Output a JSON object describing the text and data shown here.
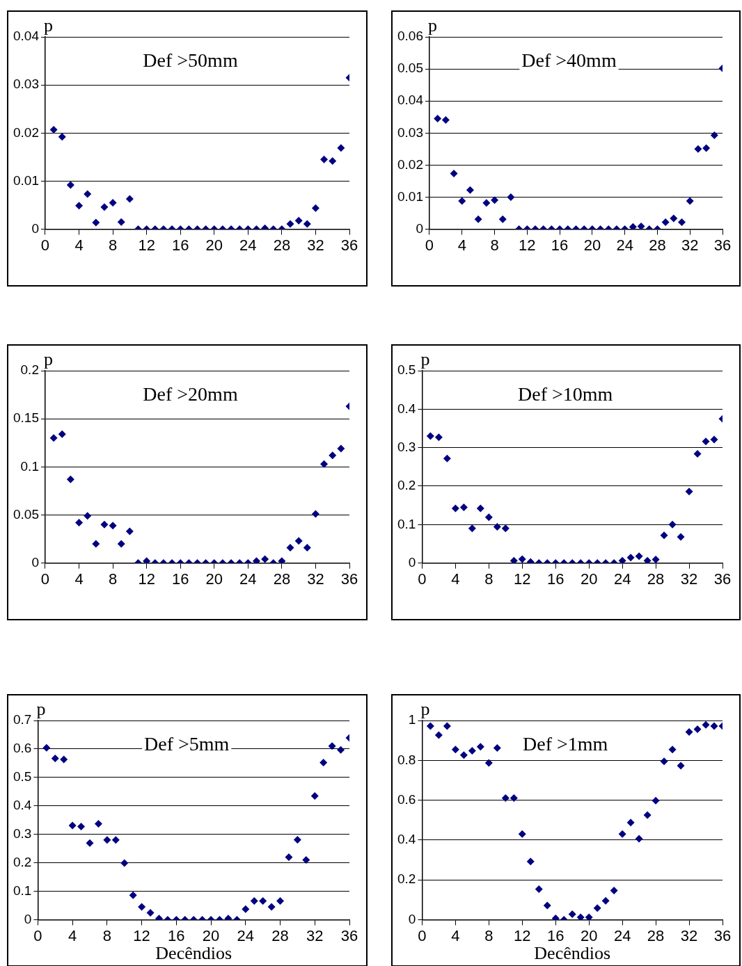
{
  "chart_data": [
    {
      "type": "scatter",
      "title": "Def >50mm",
      "ylabel": "p",
      "marker": "diamond",
      "grid": "y",
      "xlim": [
        0,
        36
      ],
      "xticks": [
        0,
        4,
        8,
        12,
        16,
        20,
        24,
        28,
        32,
        36
      ],
      "ylim": [
        0,
        0.04
      ],
      "yticks": [
        0,
        0.01,
        0.02,
        0.03,
        0.04
      ],
      "x": [
        1,
        2,
        3,
        4,
        5,
        6,
        7,
        8,
        9,
        10,
        11,
        12,
        13,
        14,
        15,
        16,
        17,
        18,
        19,
        20,
        21,
        22,
        23,
        24,
        25,
        26,
        27,
        28,
        29,
        30,
        31,
        32,
        33,
        34,
        35,
        36
      ],
      "series": [
        {
          "color": "#000080",
          "values": [
            0.0207,
            0.0192,
            0.0092,
            0.0049,
            0.0073,
            0.0014,
            0.0046,
            0.0055,
            0.0015,
            0.0063,
            0,
            0,
            0,
            0,
            0,
            0,
            0,
            0,
            0,
            0,
            0,
            0,
            0,
            0,
            0,
            0.0002,
            0,
            0,
            0.0011,
            0.0018,
            0.0011,
            0.0044,
            0.0145,
            0.0142,
            0.0169,
            0.0315
          ]
        }
      ]
    },
    {
      "type": "scatter",
      "title": "Def >40mm",
      "ylabel": "p",
      "marker": "diamond",
      "grid": "y",
      "xlim": [
        0,
        36
      ],
      "xticks": [
        0,
        4,
        8,
        12,
        16,
        20,
        24,
        28,
        32,
        36
      ],
      "ylim": [
        0,
        0.06
      ],
      "yticks": [
        0,
        0.01,
        0.02,
        0.03,
        0.04,
        0.05,
        0.06
      ],
      "x": [
        1,
        2,
        3,
        4,
        5,
        6,
        7,
        8,
        9,
        10,
        11,
        12,
        13,
        14,
        15,
        16,
        17,
        18,
        19,
        20,
        21,
        22,
        23,
        24,
        25,
        26,
        27,
        28,
        29,
        30,
        31,
        32,
        33,
        34,
        35,
        36
      ],
      "series": [
        {
          "color": "#000080",
          "values": [
            0.0345,
            0.0341,
            0.0174,
            0.0088,
            0.0122,
            0.0031,
            0.0082,
            0.0091,
            0.0031,
            0.01,
            0,
            0,
            0,
            0,
            0,
            0,
            0,
            0,
            0,
            0,
            0,
            0,
            0,
            0,
            0.0007,
            0.0009,
            0,
            0,
            0.0022,
            0.0034,
            0.0022,
            0.0088,
            0.025,
            0.0253,
            0.0293,
            0.0502
          ]
        }
      ]
    },
    {
      "type": "scatter",
      "title": "Def >20mm",
      "ylabel": "p",
      "marker": "diamond",
      "grid": "y",
      "xlim": [
        0,
        36
      ],
      "xticks": [
        0,
        4,
        8,
        12,
        16,
        20,
        24,
        28,
        32,
        36
      ],
      "ylim": [
        0,
        0.2
      ],
      "yticks": [
        0,
        0.05,
        0.1,
        0.15,
        0.2
      ],
      "x": [
        1,
        2,
        3,
        4,
        5,
        6,
        7,
        8,
        9,
        10,
        11,
        12,
        13,
        14,
        15,
        16,
        17,
        18,
        19,
        20,
        21,
        22,
        23,
        24,
        25,
        26,
        27,
        28,
        29,
        30,
        31,
        32,
        33,
        34,
        35,
        36
      ],
      "series": [
        {
          "color": "#000080",
          "values": [
            0.13,
            0.134,
            0.087,
            0.042,
            0.049,
            0.02,
            0.04,
            0.039,
            0.02,
            0.033,
            0,
            0.002,
            0,
            0,
            0,
            0,
            0,
            0,
            0,
            0,
            0,
            0,
            0,
            0,
            0.002,
            0.004,
            0,
            0.002,
            0.016,
            0.023,
            0.016,
            0.051,
            0.103,
            0.112,
            0.119,
            0.163
          ]
        }
      ]
    },
    {
      "type": "scatter",
      "title": "Def >10mm",
      "ylabel": "p",
      "marker": "diamond",
      "grid": "y",
      "xlim": [
        0,
        36
      ],
      "xticks": [
        0,
        4,
        8,
        12,
        16,
        20,
        24,
        28,
        32,
        36
      ],
      "ylim": [
        0,
        0.5
      ],
      "yticks": [
        0,
        0.1,
        0.2,
        0.3,
        0.4,
        0.5
      ],
      "x": [
        1,
        2,
        3,
        4,
        5,
        6,
        7,
        8,
        9,
        10,
        11,
        12,
        13,
        14,
        15,
        16,
        17,
        18,
        19,
        20,
        21,
        22,
        23,
        24,
        25,
        26,
        27,
        28,
        29,
        30,
        31,
        32,
        33,
        34,
        35,
        36
      ],
      "series": [
        {
          "color": "#000080",
          "values": [
            0.33,
            0.327,
            0.272,
            0.142,
            0.145,
            0.09,
            0.142,
            0.119,
            0.094,
            0.09,
            0.006,
            0.01,
            0.003,
            0,
            0,
            0,
            0,
            0,
            0,
            0,
            0,
            0,
            0,
            0.006,
            0.014,
            0.018,
            0.006,
            0.009,
            0.072,
            0.1,
            0.068,
            0.186,
            0.284,
            0.316,
            0.321,
            0.375
          ]
        }
      ]
    },
    {
      "type": "scatter",
      "title": "Def >5mm",
      "ylabel": "p",
      "xlabel": "Decêndios",
      "marker": "diamond",
      "grid": "y",
      "xlim": [
        0,
        36
      ],
      "xticks": [
        0,
        4,
        8,
        12,
        16,
        20,
        24,
        28,
        32,
        36
      ],
      "ylim": [
        0,
        0.7
      ],
      "yticks": [
        0,
        0.1,
        0.2,
        0.3,
        0.4,
        0.5,
        0.6,
        0.7
      ],
      "x": [
        1,
        2,
        3,
        4,
        5,
        6,
        7,
        8,
        9,
        10,
        11,
        12,
        13,
        14,
        15,
        16,
        17,
        18,
        19,
        20,
        21,
        22,
        23,
        24,
        25,
        26,
        27,
        28,
        29,
        30,
        31,
        32,
        33,
        34,
        35,
        36
      ],
      "series": [
        {
          "color": "#000080",
          "values": [
            0.604,
            0.567,
            0.563,
            0.331,
            0.327,
            0.269,
            0.337,
            0.28,
            0.28,
            0.199,
            0.086,
            0.045,
            0.024,
            0.004,
            0,
            0,
            0,
            0,
            0,
            0,
            0,
            0.004,
            0,
            0.037,
            0.066,
            0.066,
            0.045,
            0.066,
            0.22,
            0.281,
            0.21,
            0.435,
            0.552,
            0.61,
            0.597,
            0.639
          ]
        }
      ]
    },
    {
      "type": "scatter",
      "title": "Def >1mm",
      "ylabel": "p",
      "xlabel": "Decêndios",
      "marker": "diamond",
      "grid": "y",
      "xlim": [
        0,
        36
      ],
      "xticks": [
        0,
        4,
        8,
        12,
        16,
        20,
        24,
        28,
        32,
        36
      ],
      "ylim": [
        0,
        1
      ],
      "yticks": [
        0,
        0.2,
        0.4,
        0.6,
        0.8,
        1
      ],
      "x": [
        1,
        2,
        3,
        4,
        5,
        6,
        7,
        8,
        9,
        10,
        11,
        12,
        13,
        14,
        15,
        16,
        17,
        18,
        19,
        20,
        21,
        22,
        23,
        24,
        25,
        26,
        27,
        28,
        29,
        30,
        31,
        32,
        33,
        34,
        35,
        36
      ],
      "series": [
        {
          "color": "#000080",
          "values": [
            0.972,
            0.927,
            0.972,
            0.854,
            0.826,
            0.848,
            0.868,
            0.787,
            0.862,
            0.611,
            0.611,
            0.43,
            0.292,
            0.153,
            0.071,
            0.007,
            0,
            0.028,
            0.012,
            0.012,
            0.058,
            0.095,
            0.146,
            0.43,
            0.488,
            0.406,
            0.525,
            0.598,
            0.795,
            0.854,
            0.773,
            0.942,
            0.956,
            0.978,
            0.972,
            0.972
          ]
        }
      ]
    }
  ]
}
